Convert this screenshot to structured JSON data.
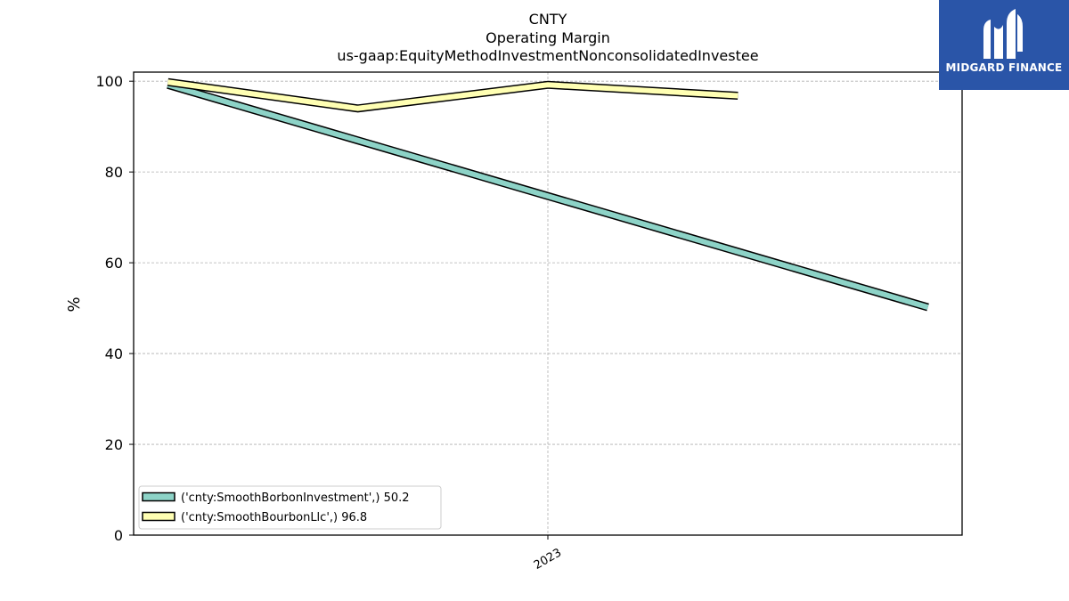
{
  "brand": {
    "name": "MIDGARD FINANCE",
    "color": "#2a55a8"
  },
  "chart_data": {
    "type": "line",
    "title_lines": [
      "CNTY",
      "Operating Margin",
      "us-gaap:EquityMethodInvestmentNonconsolidatedInvestee"
    ],
    "xlabel": "",
    "ylabel": "%",
    "x": [
      0,
      1,
      2,
      3,
      4
    ],
    "xticks": [
      {
        "pos": 2,
        "label": "2023"
      }
    ],
    "xlim": [
      -0.18,
      4.18
    ],
    "ylim": [
      0,
      102
    ],
    "yticks": [
      0,
      20,
      40,
      60,
      80,
      100
    ],
    "grid": true,
    "legend_position": "lower-left",
    "series": [
      {
        "name": "('cnty:SmoothBorbonInvestment',) 50.2",
        "color": "#8dd3c7",
        "x": [
          0,
          4
        ],
        "values": [
          99.2,
          50.2
        ]
      },
      {
        "name": "('cnty:SmoothBourbonLlc',) 96.8",
        "color": "#ffffb3",
        "x": [
          0,
          1,
          2,
          3
        ],
        "values": [
          99.8,
          94.0,
          99.2,
          96.8
        ]
      }
    ]
  }
}
